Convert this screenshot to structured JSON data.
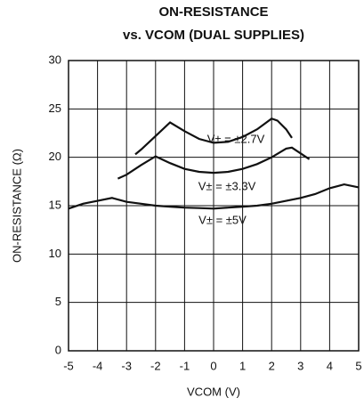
{
  "chart_data": {
    "type": "line",
    "title": "ON-RESISTANCE",
    "subtitle": "vs. VCOM (DUAL SUPPLIES)",
    "x_label": "VCOM (V)",
    "y_label": "ON-RESISTANCE (Ω)",
    "xlim": [
      -5,
      5
    ],
    "xticks": [
      -5,
      -4,
      -3,
      -2,
      -1,
      0,
      1,
      2,
      3,
      4,
      5
    ],
    "ylim": [
      0,
      30
    ],
    "yticks": [
      0,
      5,
      10,
      15,
      20,
      25,
      30
    ],
    "grid": true,
    "series": [
      {
        "name": "V± = ±2.7V",
        "color": "#111111",
        "x": [
          -2.7,
          -2.5,
          -2,
          -1.5,
          -1,
          -0.5,
          0,
          0.5,
          1,
          1.5,
          2,
          2.2,
          2.5,
          2.7
        ],
        "values": [
          20.3,
          20.8,
          22.2,
          23.6,
          22.7,
          21.9,
          21.5,
          21.6,
          22.1,
          22.9,
          24.0,
          23.8,
          22.9,
          22.0
        ]
      },
      {
        "name": "V± = ±3.3V",
        "color": "#111111",
        "x": [
          -3.3,
          -3,
          -2.5,
          -2,
          -1.5,
          -1,
          -0.5,
          0,
          0.5,
          1,
          1.5,
          2,
          2.5,
          2.7,
          3,
          3.3
        ],
        "values": [
          17.8,
          18.2,
          19.2,
          20.1,
          19.4,
          18.8,
          18.5,
          18.4,
          18.5,
          18.8,
          19.3,
          20.0,
          20.9,
          21.0,
          20.4,
          19.8
        ]
      },
      {
        "name": "V± = ±5V",
        "color": "#111111",
        "x": [
          -5,
          -4.5,
          -4,
          -3.5,
          -3,
          -2.5,
          -2,
          -1.5,
          -1,
          -0.5,
          0,
          0.5,
          1,
          1.5,
          2,
          2.5,
          3,
          3.5,
          4,
          4.5,
          5
        ],
        "values": [
          14.7,
          15.2,
          15.5,
          15.8,
          15.4,
          15.2,
          15.0,
          14.9,
          14.8,
          14.75,
          14.7,
          14.8,
          14.9,
          15.0,
          15.2,
          15.5,
          15.8,
          16.2,
          16.8,
          17.2,
          16.9
        ]
      }
    ]
  }
}
